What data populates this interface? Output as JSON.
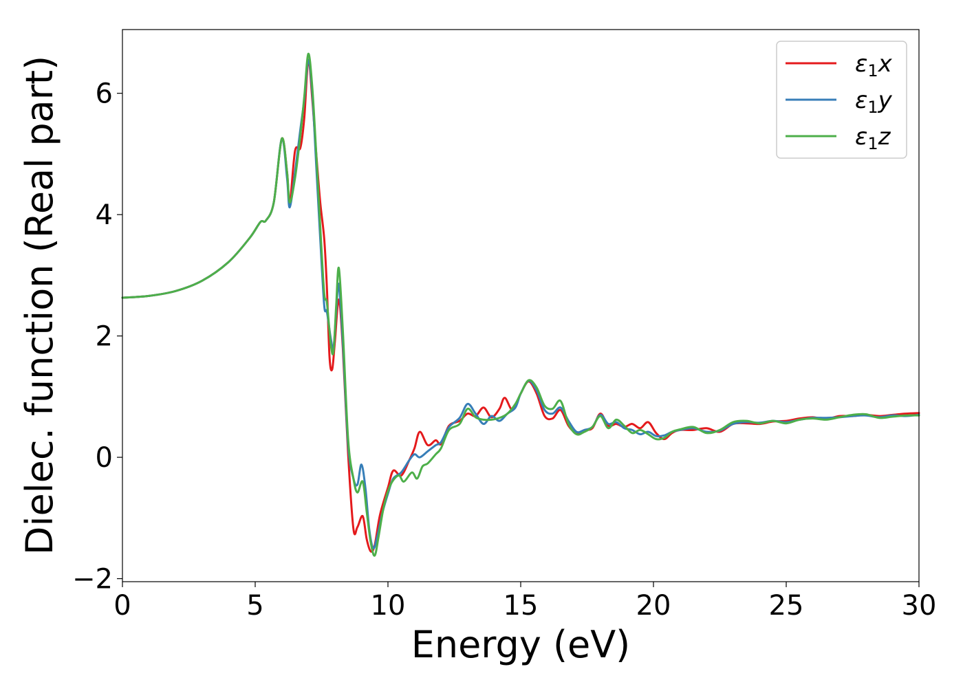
{
  "chart_data": {
    "type": "line",
    "title": "",
    "xlabel": "Energy (eV)",
    "ylabel": "Dielec. function (Real part)",
    "xlim": [
      0,
      30
    ],
    "ylim": [
      -2.05,
      7.05
    ],
    "xticks": [
      0,
      5,
      10,
      15,
      20,
      25,
      30
    ],
    "xtick_labels": [
      "0",
      "5",
      "10",
      "15",
      "20",
      "25",
      "30"
    ],
    "yticks": [
      -2,
      0,
      2,
      4,
      6
    ],
    "ytick_labels": [
      "−2",
      "0",
      "2",
      "4",
      "6"
    ],
    "grid": false,
    "legend": {
      "placement": "top-right"
    },
    "series": [
      {
        "name": "ε₁x",
        "legend_main": "ε",
        "legend_sub": "1",
        "legend_var": "x",
        "color": "#e41a1c",
        "points": [
          [
            0,
            2.63
          ],
          [
            1,
            2.66
          ],
          [
            2,
            2.74
          ],
          [
            3,
            2.91
          ],
          [
            4,
            3.22
          ],
          [
            4.8,
            3.62
          ],
          [
            5.2,
            3.88
          ],
          [
            5.4,
            3.9
          ],
          [
            5.7,
            4.2
          ],
          [
            6.0,
            5.25
          ],
          [
            6.2,
            4.7
          ],
          [
            6.3,
            4.18
          ],
          [
            6.5,
            5.05
          ],
          [
            6.7,
            5.1
          ],
          [
            6.85,
            5.6
          ],
          [
            7.0,
            6.55
          ],
          [
            7.15,
            5.9
          ],
          [
            7.3,
            5.0
          ],
          [
            7.45,
            4.2
          ],
          [
            7.6,
            3.6
          ],
          [
            7.7,
            2.8
          ],
          [
            7.8,
            1.65
          ],
          [
            7.9,
            1.45
          ],
          [
            8.0,
            1.9
          ],
          [
            8.15,
            2.6
          ],
          [
            8.3,
            1.8
          ],
          [
            8.5,
            0.05
          ],
          [
            8.7,
            -1.18
          ],
          [
            8.85,
            -1.15
          ],
          [
            9.05,
            -0.97
          ],
          [
            9.2,
            -1.35
          ],
          [
            9.35,
            -1.55
          ],
          [
            9.5,
            -1.45
          ],
          [
            9.7,
            -0.95
          ],
          [
            10.0,
            -0.5
          ],
          [
            10.2,
            -0.22
          ],
          [
            10.5,
            -0.3
          ],
          [
            10.8,
            -0.05
          ],
          [
            11.0,
            0.15
          ],
          [
            11.2,
            0.42
          ],
          [
            11.5,
            0.2
          ],
          [
            11.8,
            0.28
          ],
          [
            12.0,
            0.22
          ],
          [
            12.3,
            0.52
          ],
          [
            12.7,
            0.6
          ],
          [
            13.0,
            0.72
          ],
          [
            13.3,
            0.68
          ],
          [
            13.6,
            0.82
          ],
          [
            13.9,
            0.66
          ],
          [
            14.2,
            0.8
          ],
          [
            14.4,
            0.98
          ],
          [
            14.7,
            0.78
          ],
          [
            15.0,
            1.05
          ],
          [
            15.3,
            1.25
          ],
          [
            15.6,
            1.05
          ],
          [
            15.9,
            0.68
          ],
          [
            16.2,
            0.64
          ],
          [
            16.5,
            0.78
          ],
          [
            16.8,
            0.52
          ],
          [
            17.1,
            0.4
          ],
          [
            17.4,
            0.45
          ],
          [
            17.7,
            0.48
          ],
          [
            18.0,
            0.72
          ],
          [
            18.3,
            0.52
          ],
          [
            18.6,
            0.55
          ],
          [
            18.9,
            0.5
          ],
          [
            19.2,
            0.55
          ],
          [
            19.5,
            0.48
          ],
          [
            19.8,
            0.58
          ],
          [
            20.1,
            0.4
          ],
          [
            20.4,
            0.3
          ],
          [
            20.7,
            0.4
          ],
          [
            21.0,
            0.45
          ],
          [
            21.5,
            0.45
          ],
          [
            22.0,
            0.48
          ],
          [
            22.5,
            0.42
          ],
          [
            23.0,
            0.55
          ],
          [
            23.5,
            0.56
          ],
          [
            24.0,
            0.55
          ],
          [
            24.5,
            0.59
          ],
          [
            25.0,
            0.6
          ],
          [
            25.5,
            0.64
          ],
          [
            26.0,
            0.66
          ],
          [
            26.5,
            0.63
          ],
          [
            27.0,
            0.68
          ],
          [
            27.5,
            0.68
          ],
          [
            28.0,
            0.7
          ],
          [
            28.5,
            0.68
          ],
          [
            29.0,
            0.7
          ],
          [
            29.5,
            0.72
          ],
          [
            30.0,
            0.73
          ]
        ]
      },
      {
        "name": "ε₁y",
        "legend_main": "ε",
        "legend_sub": "1",
        "legend_var": "y",
        "color": "#377eb8",
        "points": [
          [
            0,
            2.63
          ],
          [
            1,
            2.66
          ],
          [
            2,
            2.74
          ],
          [
            3,
            2.91
          ],
          [
            4,
            3.22
          ],
          [
            4.8,
            3.62
          ],
          [
            5.2,
            3.88
          ],
          [
            5.4,
            3.9
          ],
          [
            5.7,
            4.2
          ],
          [
            6.0,
            5.25
          ],
          [
            6.2,
            4.6
          ],
          [
            6.3,
            4.12
          ],
          [
            6.5,
            4.7
          ],
          [
            6.7,
            5.4
          ],
          [
            6.85,
            5.9
          ],
          [
            7.0,
            6.55
          ],
          [
            7.15,
            6.0
          ],
          [
            7.3,
            4.8
          ],
          [
            7.45,
            3.6
          ],
          [
            7.6,
            2.5
          ],
          [
            7.7,
            2.4
          ],
          [
            7.85,
            1.95
          ],
          [
            7.95,
            1.8
          ],
          [
            8.05,
            2.4
          ],
          [
            8.15,
            2.85
          ],
          [
            8.3,
            1.9
          ],
          [
            8.5,
            0.2
          ],
          [
            8.7,
            -0.35
          ],
          [
            8.85,
            -0.45
          ],
          [
            9.0,
            -0.12
          ],
          [
            9.15,
            -0.5
          ],
          [
            9.3,
            -1.2
          ],
          [
            9.45,
            -1.5
          ],
          [
            9.6,
            -1.3
          ],
          [
            9.8,
            -0.9
          ],
          [
            10.0,
            -0.6
          ],
          [
            10.2,
            -0.35
          ],
          [
            10.5,
            -0.25
          ],
          [
            10.8,
            -0.05
          ],
          [
            11.0,
            0.05
          ],
          [
            11.2,
            0.0
          ],
          [
            11.5,
            0.1
          ],
          [
            11.8,
            0.2
          ],
          [
            12.0,
            0.25
          ],
          [
            12.3,
            0.5
          ],
          [
            12.7,
            0.65
          ],
          [
            13.0,
            0.88
          ],
          [
            13.3,
            0.72
          ],
          [
            13.6,
            0.55
          ],
          [
            13.9,
            0.68
          ],
          [
            14.2,
            0.6
          ],
          [
            14.5,
            0.72
          ],
          [
            14.8,
            0.82
          ],
          [
            15.0,
            1.05
          ],
          [
            15.3,
            1.26
          ],
          [
            15.6,
            1.1
          ],
          [
            15.9,
            0.78
          ],
          [
            16.2,
            0.72
          ],
          [
            16.5,
            0.82
          ],
          [
            16.8,
            0.6
          ],
          [
            17.1,
            0.42
          ],
          [
            17.4,
            0.45
          ],
          [
            17.7,
            0.5
          ],
          [
            18.0,
            0.7
          ],
          [
            18.3,
            0.55
          ],
          [
            18.6,
            0.58
          ],
          [
            18.9,
            0.48
          ],
          [
            19.2,
            0.45
          ],
          [
            19.5,
            0.38
          ],
          [
            19.8,
            0.42
          ],
          [
            20.1,
            0.35
          ],
          [
            20.4,
            0.36
          ],
          [
            20.7,
            0.42
          ],
          [
            21.0,
            0.45
          ],
          [
            21.5,
            0.48
          ],
          [
            22.0,
            0.42
          ],
          [
            22.5,
            0.44
          ],
          [
            23.0,
            0.55
          ],
          [
            23.5,
            0.58
          ],
          [
            24.0,
            0.57
          ],
          [
            24.5,
            0.6
          ],
          [
            25.0,
            0.58
          ],
          [
            25.5,
            0.62
          ],
          [
            26.0,
            0.65
          ],
          [
            26.5,
            0.65
          ],
          [
            27.0,
            0.66
          ],
          [
            27.5,
            0.68
          ],
          [
            28.0,
            0.69
          ],
          [
            28.5,
            0.66
          ],
          [
            29.0,
            0.69
          ],
          [
            29.5,
            0.68
          ],
          [
            30.0,
            0.7
          ]
        ]
      },
      {
        "name": "ε₁z",
        "legend_main": "ε",
        "legend_sub": "1",
        "legend_var": "z",
        "color": "#4daf4a",
        "points": [
          [
            0,
            2.63
          ],
          [
            1,
            2.66
          ],
          [
            2,
            2.74
          ],
          [
            3,
            2.91
          ],
          [
            4,
            3.22
          ],
          [
            4.8,
            3.62
          ],
          [
            5.2,
            3.88
          ],
          [
            5.4,
            3.9
          ],
          [
            5.7,
            4.2
          ],
          [
            6.0,
            5.25
          ],
          [
            6.2,
            4.7
          ],
          [
            6.3,
            4.2
          ],
          [
            6.5,
            4.6
          ],
          [
            6.7,
            5.3
          ],
          [
            6.85,
            5.95
          ],
          [
            7.0,
            6.65
          ],
          [
            7.15,
            6.1
          ],
          [
            7.3,
            5.0
          ],
          [
            7.45,
            3.8
          ],
          [
            7.6,
            2.7
          ],
          [
            7.7,
            2.55
          ],
          [
            7.85,
            1.85
          ],
          [
            7.95,
            1.75
          ],
          [
            8.05,
            2.5
          ],
          [
            8.15,
            3.12
          ],
          [
            8.3,
            2.1
          ],
          [
            8.5,
            0.3
          ],
          [
            8.7,
            -0.35
          ],
          [
            8.85,
            -0.58
          ],
          [
            9.05,
            -0.4
          ],
          [
            9.2,
            -0.9
          ],
          [
            9.35,
            -1.4
          ],
          [
            9.5,
            -1.62
          ],
          [
            9.65,
            -1.3
          ],
          [
            9.85,
            -0.8
          ],
          [
            10.1,
            -0.45
          ],
          [
            10.4,
            -0.3
          ],
          [
            10.6,
            -0.4
          ],
          [
            10.9,
            -0.25
          ],
          [
            11.1,
            -0.35
          ],
          [
            11.3,
            -0.15
          ],
          [
            11.5,
            -0.1
          ],
          [
            11.8,
            0.05
          ],
          [
            12.0,
            0.15
          ],
          [
            12.3,
            0.45
          ],
          [
            12.7,
            0.55
          ],
          [
            13.0,
            0.8
          ],
          [
            13.3,
            0.66
          ],
          [
            13.6,
            0.62
          ],
          [
            13.9,
            0.62
          ],
          [
            14.2,
            0.65
          ],
          [
            14.5,
            0.72
          ],
          [
            14.8,
            0.88
          ],
          [
            15.0,
            1.05
          ],
          [
            15.3,
            1.27
          ],
          [
            15.6,
            1.15
          ],
          [
            15.9,
            0.85
          ],
          [
            16.2,
            0.8
          ],
          [
            16.5,
            0.93
          ],
          [
            16.8,
            0.55
          ],
          [
            17.1,
            0.38
          ],
          [
            17.4,
            0.42
          ],
          [
            17.7,
            0.5
          ],
          [
            18.0,
            0.68
          ],
          [
            18.3,
            0.48
          ],
          [
            18.6,
            0.62
          ],
          [
            18.9,
            0.52
          ],
          [
            19.2,
            0.4
          ],
          [
            19.5,
            0.45
          ],
          [
            19.8,
            0.38
          ],
          [
            20.1,
            0.3
          ],
          [
            20.4,
            0.32
          ],
          [
            20.7,
            0.42
          ],
          [
            21.0,
            0.46
          ],
          [
            21.5,
            0.5
          ],
          [
            22.0,
            0.4
          ],
          [
            22.5,
            0.45
          ],
          [
            23.0,
            0.58
          ],
          [
            23.5,
            0.6
          ],
          [
            24.0,
            0.56
          ],
          [
            24.5,
            0.6
          ],
          [
            25.0,
            0.56
          ],
          [
            25.5,
            0.62
          ],
          [
            26.0,
            0.64
          ],
          [
            26.5,
            0.62
          ],
          [
            27.0,
            0.66
          ],
          [
            27.5,
            0.7
          ],
          [
            28.0,
            0.71
          ],
          [
            28.5,
            0.65
          ],
          [
            29.0,
            0.67
          ],
          [
            29.5,
            0.69
          ],
          [
            30.0,
            0.69
          ]
        ]
      }
    ]
  }
}
